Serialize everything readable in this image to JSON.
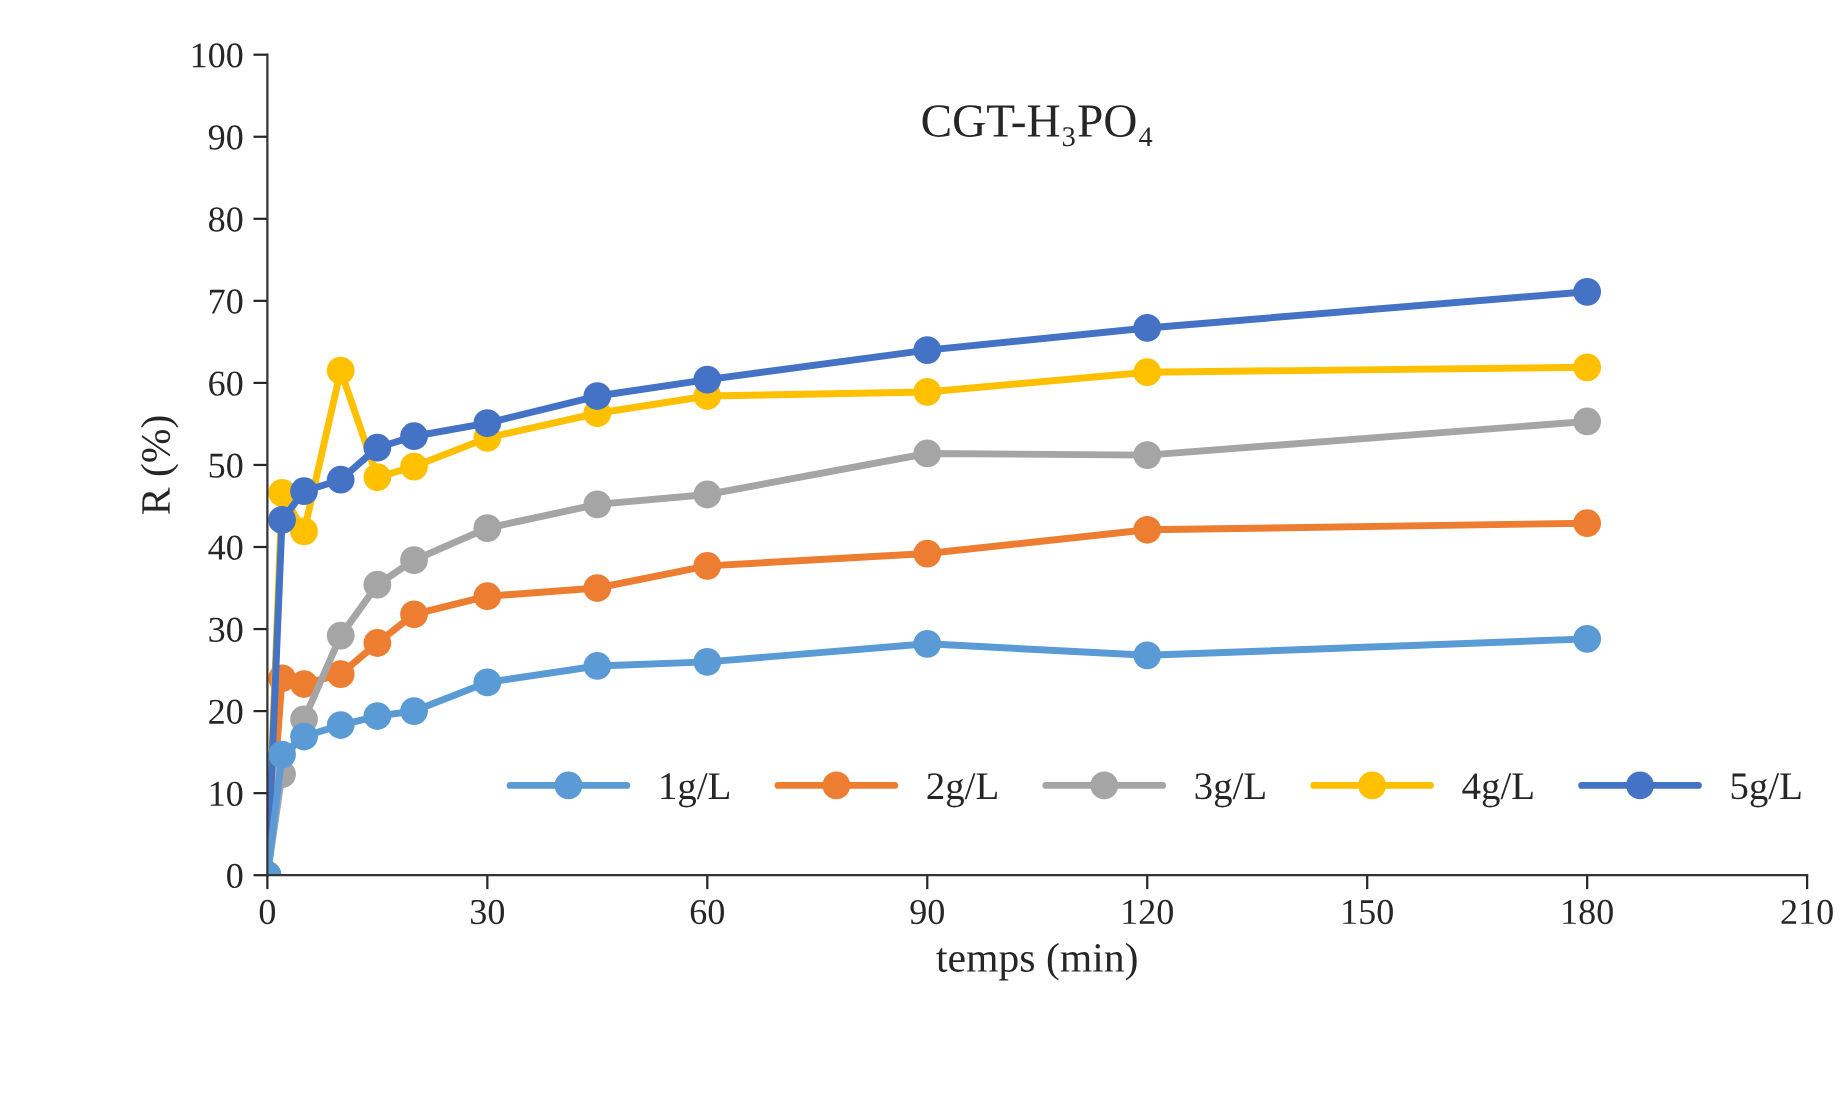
{
  "chart_data": {
    "type": "line",
    "title": "CGT-H₃PO₄",
    "xlabel": "temps (min)",
    "ylabel": "R (%)",
    "x": [
      0,
      2,
      5,
      10,
      15,
      20,
      30,
      45,
      60,
      90,
      120,
      180
    ],
    "series": [
      {
        "name": "1g/L",
        "color": "#5b9bd5",
        "values": [
          0,
          14.7,
          16.9,
          18.3,
          19.4,
          20,
          23.5,
          25.5,
          26,
          28.2,
          26.8,
          28.8
        ]
      },
      {
        "name": "2g/L",
        "color": "#ed7d31",
        "values": [
          0,
          24,
          23.3,
          24.5,
          28.3,
          31.8,
          34,
          35,
          37.7,
          39.2,
          42.1,
          42.9
        ]
      },
      {
        "name": "3g/L",
        "color": "#a5a5a5",
        "values": [
          0,
          12.3,
          19,
          29.2,
          35.4,
          38.4,
          42.3,
          45.2,
          46.4,
          51.4,
          51.2,
          55.3
        ]
      },
      {
        "name": "4g/L",
        "color": "#ffc000",
        "values": [
          0,
          46.6,
          41.9,
          61.5,
          48.5,
          49.8,
          53.3,
          56.3,
          58.4,
          58.9,
          61.3,
          61.9
        ]
      },
      {
        "name": "5g/L",
        "color": "#4472c4",
        "values": [
          0,
          43.3,
          46.8,
          48.2,
          52.1,
          53.5,
          55.1,
          58.4,
          60.4,
          64,
          66.7,
          71.1
        ]
      }
    ],
    "xlim": [
      0,
      210
    ],
    "xticks": [
      0,
      30,
      60,
      90,
      120,
      150,
      180,
      210
    ],
    "ylim": [
      0,
      100
    ],
    "yticks": [
      0,
      10,
      20,
      30,
      40,
      50,
      60,
      70,
      80,
      90,
      100
    ],
    "grid": false,
    "legend": "bottom right",
    "marker": "circle",
    "line_style": "solid"
  }
}
